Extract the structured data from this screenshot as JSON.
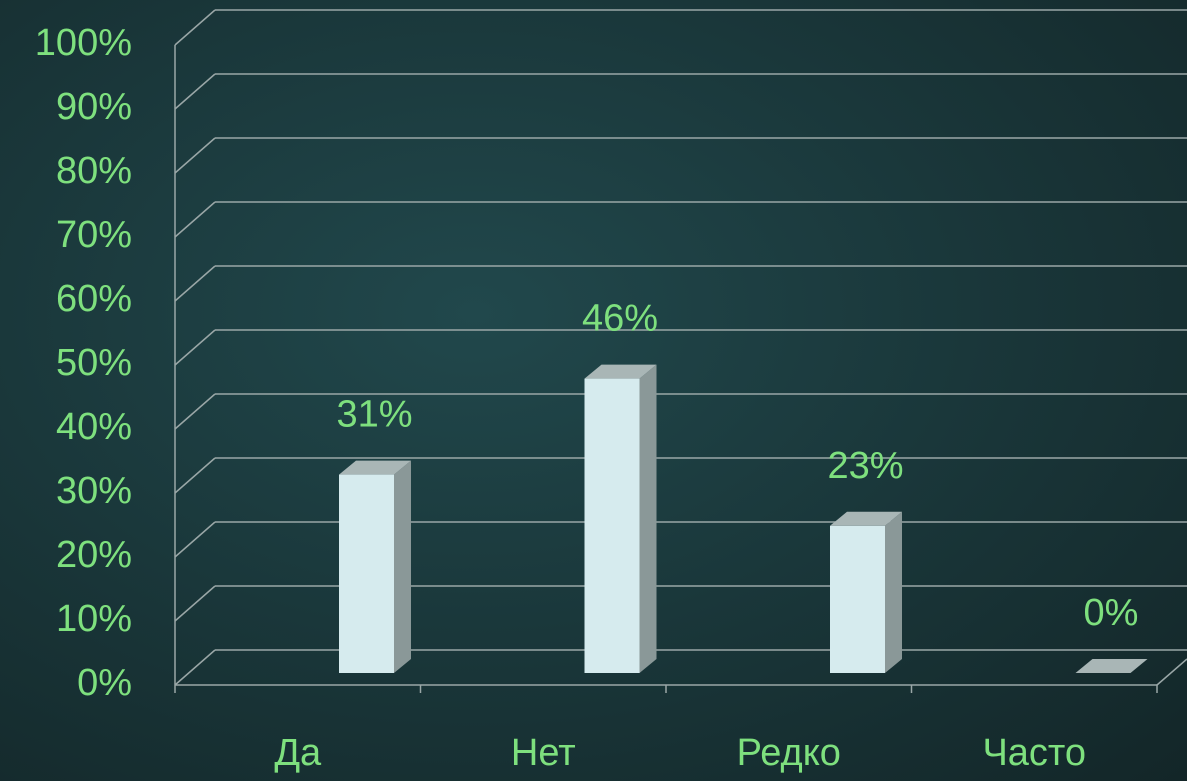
{
  "chart_data": {
    "type": "bar3d",
    "categories": [
      "Да",
      "Нет",
      "Редко",
      "Часто"
    ],
    "values": [
      31,
      46,
      23,
      0
    ],
    "value_labels": [
      "31%",
      "46%",
      "23%",
      "0%"
    ],
    "color": "#d6ebee",
    "ylim": [
      0,
      100
    ],
    "yticks": [
      {
        "value": 0,
        "label": "0%"
      },
      {
        "value": 10,
        "label": "10%"
      },
      {
        "value": 20,
        "label": "20%"
      },
      {
        "value": 30,
        "label": "30%"
      },
      {
        "value": 40,
        "label": "40%"
      },
      {
        "value": 50,
        "label": "50%"
      },
      {
        "value": 60,
        "label": "60%"
      },
      {
        "value": 70,
        "label": "70%"
      },
      {
        "value": 80,
        "label": "80%"
      },
      {
        "value": 90,
        "label": "90%"
      },
      {
        "value": 100,
        "label": "100%"
      }
    ],
    "grid": true
  }
}
